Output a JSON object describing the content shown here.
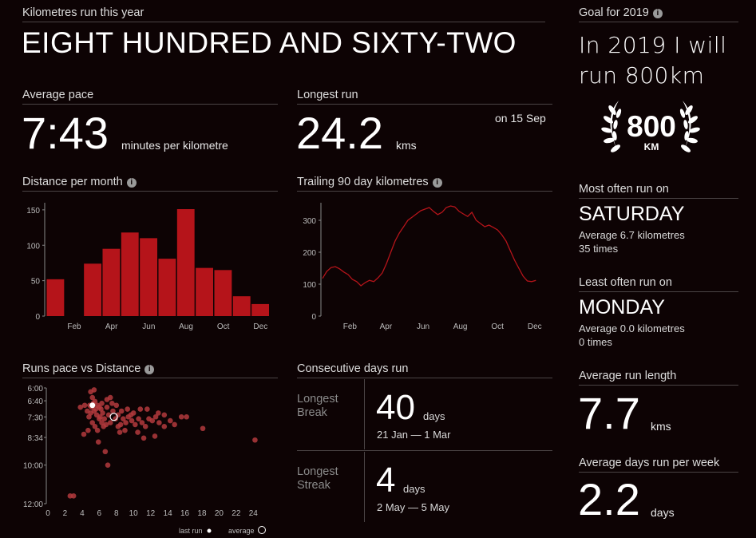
{
  "header": {
    "km_label": "Kilometres run this year",
    "km_words": "EIGHT HUNDRED AND SIXTY-TWO"
  },
  "pace": {
    "label": "Average pace",
    "value": "7:43",
    "unit": "minutes per kilometre"
  },
  "longest": {
    "label": "Longest run",
    "value": "24.2",
    "unit": "kms",
    "date": "on 15 Sep"
  },
  "goal": {
    "label": "Goal for 2019",
    "text_line1": "In 2019 I will",
    "text_line2": "run 800km",
    "badge_value": "800",
    "badge_unit": "KM"
  },
  "most_often": {
    "label": "Most often run on",
    "day": "SATURDAY",
    "avg": "Average 6.7 kilometres",
    "times": "35 times"
  },
  "least_often": {
    "label": "Least often run on",
    "day": "MONDAY",
    "avg": "Average 0.0 kilometres",
    "times": "0 times"
  },
  "avg_run": {
    "label": "Average run length",
    "value": "7.7",
    "unit": "kms"
  },
  "avg_days": {
    "label": "Average days run per week",
    "value": "2.2",
    "unit": "days"
  },
  "consecutive": {
    "label": "Consecutive days run",
    "break_label1": "Longest",
    "break_label2": "Break",
    "break_value": "40",
    "break_unit": "days",
    "break_range": "21 Jan — 1 Mar",
    "streak_label1": "Longest",
    "streak_label2": "Streak",
    "streak_value": "4",
    "streak_unit": "days",
    "streak_range": "2 May — 5 May"
  },
  "colors": {
    "bar": "#b5141a",
    "line": "#b5141a",
    "dot": "#b33a3d",
    "background": "#0d0304"
  },
  "icons": {
    "info": "info-icon",
    "laurel": "laurel-wreath-icon"
  },
  "chart_data": [
    {
      "type": "bar",
      "title": "Distance per month",
      "categories": [
        "Jan",
        "Feb",
        "Mar",
        "Apr",
        "May",
        "Jun",
        "Jul",
        "Aug",
        "Sep",
        "Oct",
        "Nov",
        "Dec"
      ],
      "tick_labels": [
        "Feb",
        "Apr",
        "Jun",
        "Aug",
        "Oct",
        "Dec"
      ],
      "values": [
        52,
        0,
        74,
        95,
        118,
        110,
        81,
        151,
        68,
        65,
        28,
        17
      ],
      "ylim": [
        0,
        160
      ],
      "yticks": [
        0,
        50,
        100,
        150
      ]
    },
    {
      "type": "line",
      "title": "Trailing 90 day kilometres",
      "x_range": [
        "2019-01-01",
        "2019-12-31"
      ],
      "tick_labels": [
        "Feb",
        "Apr",
        "Jun",
        "Aug",
        "Oct",
        "Dec"
      ],
      "ylim": [
        0,
        355
      ],
      "yticks": [
        0,
        100,
        200,
        300
      ],
      "points": [
        [
          "2019-01-01",
          118
        ],
        [
          "2019-01-08",
          140
        ],
        [
          "2019-01-15",
          152
        ],
        [
          "2019-01-22",
          155
        ],
        [
          "2019-01-29",
          148
        ],
        [
          "2019-02-05",
          138
        ],
        [
          "2019-02-12",
          130
        ],
        [
          "2019-02-19",
          115
        ],
        [
          "2019-02-26",
          108
        ],
        [
          "2019-03-05",
          95
        ],
        [
          "2019-03-12",
          105
        ],
        [
          "2019-03-19",
          112
        ],
        [
          "2019-03-26",
          108
        ],
        [
          "2019-04-02",
          120
        ],
        [
          "2019-04-09",
          135
        ],
        [
          "2019-04-16",
          165
        ],
        [
          "2019-04-23",
          200
        ],
        [
          "2019-04-30",
          235
        ],
        [
          "2019-05-07",
          260
        ],
        [
          "2019-05-14",
          280
        ],
        [
          "2019-05-21",
          300
        ],
        [
          "2019-05-28",
          310
        ],
        [
          "2019-06-04",
          320
        ],
        [
          "2019-06-11",
          330
        ],
        [
          "2019-06-18",
          335
        ],
        [
          "2019-06-25",
          340
        ],
        [
          "2019-07-02",
          328
        ],
        [
          "2019-07-09",
          318
        ],
        [
          "2019-07-16",
          325
        ],
        [
          "2019-07-23",
          340
        ],
        [
          "2019-07-30",
          345
        ],
        [
          "2019-08-06",
          342
        ],
        [
          "2019-08-13",
          328
        ],
        [
          "2019-08-20",
          320
        ],
        [
          "2019-08-27",
          312
        ],
        [
          "2019-09-03",
          325
        ],
        [
          "2019-09-10",
          300
        ],
        [
          "2019-09-17",
          290
        ],
        [
          "2019-09-24",
          280
        ],
        [
          "2019-10-01",
          285
        ],
        [
          "2019-10-08",
          278
        ],
        [
          "2019-10-15",
          270
        ],
        [
          "2019-10-22",
          255
        ],
        [
          "2019-10-29",
          235
        ],
        [
          "2019-11-05",
          205
        ],
        [
          "2019-11-12",
          175
        ],
        [
          "2019-11-19",
          150
        ],
        [
          "2019-11-26",
          125
        ],
        [
          "2019-12-03",
          110
        ],
        [
          "2019-12-10",
          108
        ],
        [
          "2019-12-17",
          112
        ]
      ]
    },
    {
      "type": "scatter",
      "title": "Runs pace vs Distance",
      "x_ticks": [
        0,
        2,
        4,
        6,
        8,
        10,
        12,
        14,
        16,
        18,
        20,
        22,
        24
      ],
      "xlim": [
        0,
        25
      ],
      "y_ticks": [
        "6:00",
        "6:40",
        "7:30",
        "8:34",
        "10:00",
        "12:00"
      ],
      "y_unit": "minutes per kilometre",
      "points": [
        [
          2.6,
          11.6
        ],
        [
          3.0,
          11.6
        ],
        [
          4.2,
          8.4
        ],
        [
          4.7,
          8.2
        ],
        [
          5.0,
          6.2
        ],
        [
          5.2,
          6.5
        ],
        [
          5.5,
          6.7
        ],
        [
          5.8,
          6.9
        ],
        [
          6.0,
          7.0
        ],
        [
          6.2,
          7.1
        ],
        [
          5.1,
          7.0
        ],
        [
          5.4,
          7.2
        ],
        [
          5.7,
          7.4
        ],
        [
          6.0,
          7.6
        ],
        [
          6.3,
          7.8
        ],
        [
          4.8,
          7.5
        ],
        [
          5.0,
          7.3
        ],
        [
          5.2,
          7.8
        ],
        [
          5.5,
          8.0
        ],
        [
          5.8,
          8.2
        ],
        [
          6.1,
          7.5
        ],
        [
          6.4,
          7.3
        ],
        [
          6.6,
          7.6
        ],
        [
          4.9,
          6.9
        ],
        [
          5.3,
          6.8
        ],
        [
          5.6,
          7.1
        ],
        [
          6.9,
          7.0
        ],
        [
          7.1,
          7.4
        ],
        [
          7.3,
          7.8
        ],
        [
          7.6,
          7.2
        ],
        [
          7.9,
          7.6
        ],
        [
          8.2,
          7.4
        ],
        [
          8.5,
          7.9
        ],
        [
          8.8,
          7.6
        ],
        [
          9.1,
          7.8
        ],
        [
          9.4,
          7.5
        ],
        [
          9.8,
          7.7
        ],
        [
          10.2,
          7.9
        ],
        [
          10.6,
          7.6
        ],
        [
          11.0,
          7.8
        ],
        [
          11.4,
          8.0
        ],
        [
          11.8,
          7.6
        ],
        [
          12.2,
          7.7
        ],
        [
          12.6,
          7.5
        ],
        [
          13.0,
          7.8
        ],
        [
          13.6,
          7.4
        ],
        [
          14.3,
          7.7
        ],
        [
          15.6,
          7.5
        ],
        [
          16.2,
          7.5
        ],
        [
          18.1,
          8.1
        ],
        [
          24.2,
          8.7
        ],
        [
          7.3,
          6.5
        ],
        [
          6.5,
          8.0
        ],
        [
          6.7,
          9.3
        ],
        [
          8.2,
          8.0
        ],
        [
          9.0,
          8.2
        ],
        [
          10.5,
          8.3
        ],
        [
          11.2,
          8.6
        ],
        [
          12.5,
          8.5
        ],
        [
          13.6,
          8.0
        ],
        [
          7.5,
          6.8
        ],
        [
          8.6,
          7.2
        ],
        [
          9.7,
          7.4
        ],
        [
          10.8,
          7.1
        ],
        [
          6.8,
          7.9
        ],
        [
          7.0,
          10.0
        ],
        [
          5.4,
          6.1
        ],
        [
          4.6,
          7.2
        ],
        [
          4.3,
          6.9
        ],
        [
          3.8,
          7.0
        ],
        [
          6.9,
          6.6
        ],
        [
          8.0,
          6.9
        ],
        [
          9.3,
          7.1
        ],
        [
          10.0,
          7.3
        ],
        [
          11.6,
          7.1
        ],
        [
          12.9,
          7.3
        ],
        [
          14.8,
          7.9
        ],
        [
          8.4,
          8.3
        ],
        [
          5.9,
          8.8
        ],
        [
          6.3,
          6.8
        ]
      ],
      "last_run": [
        5.2,
        6.9
      ],
      "average": [
        7.7,
        7.5
      ],
      "legend": [
        "last run",
        "average"
      ]
    }
  ]
}
